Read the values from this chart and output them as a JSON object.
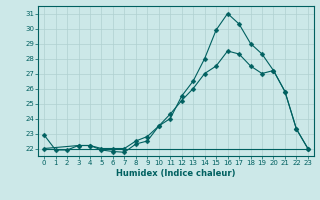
{
  "background_color": "#cce8e8",
  "grid_color": "#b0d0d0",
  "line_color": "#006060",
  "xlabel": "Humidex (Indice chaleur)",
  "xlim": [
    -0.5,
    23.5
  ],
  "ylim": [
    21.5,
    31.5
  ],
  "yticks": [
    22,
    23,
    24,
    25,
    26,
    27,
    28,
    29,
    30,
    31
  ],
  "xticks": [
    0,
    1,
    2,
    3,
    4,
    5,
    6,
    7,
    8,
    9,
    10,
    11,
    12,
    13,
    14,
    15,
    16,
    17,
    18,
    19,
    20,
    21,
    22,
    23
  ],
  "line1_x": [
    0,
    1,
    2,
    3,
    4,
    5,
    6,
    7,
    8,
    9,
    10,
    11,
    12,
    13,
    14,
    15,
    16,
    17,
    18,
    19,
    20,
    21,
    22,
    23
  ],
  "line1_y": [
    22.9,
    21.9,
    21.9,
    22.2,
    22.2,
    21.9,
    21.8,
    21.75,
    22.3,
    22.5,
    23.5,
    24.0,
    25.5,
    26.5,
    28.0,
    29.9,
    31.0,
    30.3,
    29.0,
    28.3,
    27.2,
    25.8,
    23.3,
    22.0
  ],
  "line2_x": [
    0,
    3,
    4,
    5,
    6,
    7,
    8,
    9,
    10,
    11,
    12,
    13,
    14,
    15,
    16,
    17,
    18,
    19,
    20,
    21,
    22,
    23
  ],
  "line2_y": [
    22.0,
    22.2,
    22.2,
    22.0,
    22.0,
    22.0,
    22.5,
    22.8,
    23.5,
    24.3,
    25.2,
    26.0,
    27.0,
    27.5,
    28.5,
    28.3,
    27.5,
    27.0,
    27.2,
    25.8,
    23.3,
    22.0
  ],
  "line3_x": [
    0,
    1,
    2,
    3,
    4,
    5,
    6,
    7,
    8,
    9,
    10,
    23
  ],
  "line3_y": [
    22.0,
    22.0,
    22.0,
    22.0,
    22.0,
    22.0,
    22.0,
    22.0,
    22.0,
    22.0,
    22.0,
    22.0
  ]
}
